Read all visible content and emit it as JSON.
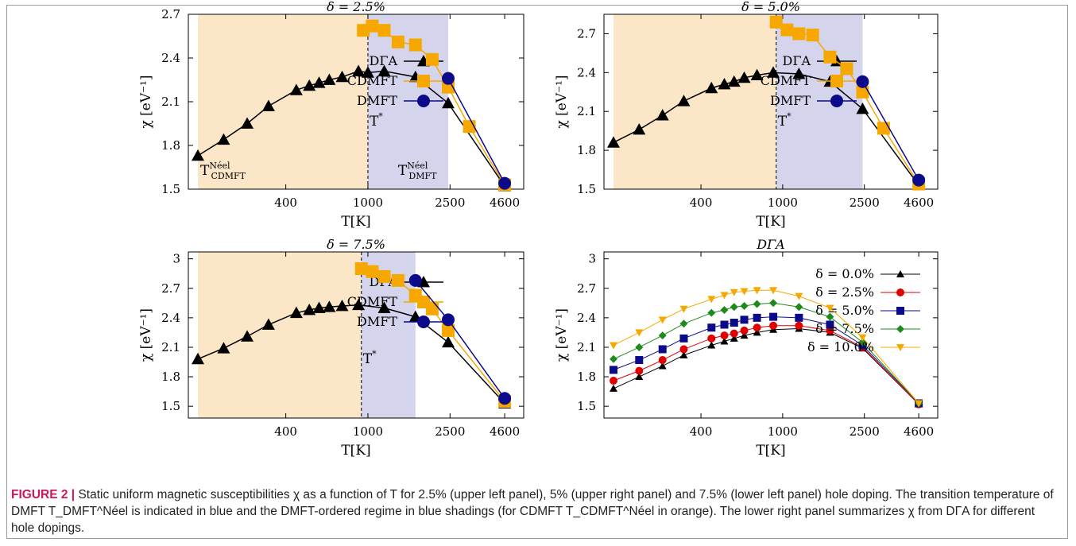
{
  "figure_label": "FIGURE 2 |",
  "caption_text": "Static uniform magnetic susceptibilities χ as a function of T for 2.5% (upper left panel), 5% (upper right panel) and 7.5% (lower left panel) hole doping. The transition temperature of DMFT T_DMFT^Néel is indicated in blue and the DMFT-ordered regime in blue shadings (for CDMFT T_CDMFT^Néel in orange). The lower right panel summarizes χ from DΓA for different hole dopings.",
  "colors": {
    "dga": "#000000",
    "cdmft": "#f6a800",
    "dmft": "#0a0a8a",
    "orange_shade": "#fbe7c8",
    "blue_shade": "#d4d4ec"
  },
  "chart_data": [
    {
      "type": "line",
      "title": "δ = 2.5%",
      "xlabel": "T[K]",
      "ylabel": "χ [eV⁻¹]",
      "x_ticks": [
        400,
        1000,
        2500,
        4600
      ],
      "y_ticks": [
        "1.5",
        "1.8",
        "2.1",
        "2.4",
        "2.7"
      ],
      "ylim": [
        1.5,
        2.7
      ],
      "annotations": [
        "T*",
        "T_CDMFT^Néel",
        "T_DMFT^Néel"
      ],
      "shaded_regions": [
        {
          "from": 150,
          "to": 1000,
          "color": "orange"
        },
        {
          "from": 1000,
          "to": 2450,
          "color": "blue"
        }
      ],
      "dashed_line_x": 1000,
      "legend_position": "right",
      "series": [
        {
          "name": "DΓA",
          "marker": "triangle",
          "x": [
            150,
            200,
            260,
            330,
            450,
            520,
            580,
            650,
            750,
            900,
            1000,
            1200,
            1700,
            2450,
            4600
          ],
          "y": [
            1.73,
            1.84,
            1.95,
            2.07,
            2.18,
            2.21,
            2.23,
            2.25,
            2.27,
            2.31,
            2.3,
            2.31,
            2.27,
            2.09,
            1.52
          ]
        },
        {
          "name": "CDMFT",
          "marker": "square",
          "x": [
            950,
            1050,
            1200,
            1400,
            1700,
            2050,
            2450,
            3100,
            4600
          ],
          "y": [
            2.59,
            2.62,
            2.59,
            2.51,
            2.49,
            2.39,
            2.2,
            1.93,
            1.53
          ]
        },
        {
          "name": "DMFT",
          "marker": "circle",
          "x": [
            2450,
            4600
          ],
          "y": [
            2.26,
            1.54
          ]
        }
      ]
    },
    {
      "type": "line",
      "title": "δ = 5.0%",
      "xlabel": "T[K]",
      "ylabel": "χ [eV⁻¹]",
      "x_ticks": [
        400,
        1000,
        2500,
        4600
      ],
      "y_ticks": [
        "1.5",
        "1.8",
        "2.1",
        "2.4",
        "2.7"
      ],
      "ylim": [
        1.5,
        2.85
      ],
      "annotations": [
        "T*"
      ],
      "shaded_regions": [
        {
          "from": 150,
          "to": 930,
          "color": "orange"
        },
        {
          "from": 930,
          "to": 2450,
          "color": "blue"
        }
      ],
      "dashed_line_x": 930,
      "legend_position": "right",
      "series": [
        {
          "name": "DΓA",
          "marker": "triangle",
          "x": [
            150,
            200,
            260,
            330,
            450,
            520,
            580,
            650,
            750,
            900,
            1200,
            1700,
            2450,
            4600
          ],
          "y": [
            1.86,
            1.96,
            2.07,
            2.18,
            2.28,
            2.31,
            2.33,
            2.36,
            2.38,
            2.4,
            2.39,
            2.33,
            2.12,
            1.53
          ]
        },
        {
          "name": "CDMFT",
          "marker": "square",
          "x": [
            930,
            1050,
            1200,
            1400,
            1700,
            2050,
            2450,
            3100,
            4600
          ],
          "y": [
            2.79,
            2.73,
            2.7,
            2.69,
            2.52,
            2.43,
            2.25,
            1.97,
            1.54
          ]
        },
        {
          "name": "DMFT",
          "marker": "circle",
          "x": [
            2450,
            4600
          ],
          "y": [
            2.33,
            1.57
          ]
        }
      ]
    },
    {
      "type": "line",
      "title": "δ = 7.5%",
      "xlabel": "T[K]",
      "ylabel": "χ [eV⁻¹]",
      "x_ticks": [
        400,
        1000,
        2500,
        4600
      ],
      "y_ticks": [
        "1.5",
        "1.8",
        "2.1",
        "2.4",
        "2.7",
        "3"
      ],
      "ylim": [
        1.38,
        3.07
      ],
      "annotations": [
        "T*"
      ],
      "shaded_regions": [
        {
          "from": 150,
          "to": 930,
          "color": "orange"
        },
        {
          "from": 930,
          "to": 1700,
          "color": "blue"
        }
      ],
      "dashed_line_x": 930,
      "legend_position": "right",
      "series": [
        {
          "name": "DΓA",
          "marker": "triangle",
          "x": [
            150,
            200,
            260,
            330,
            450,
            520,
            580,
            650,
            750,
            900,
            1200,
            1700,
            2450,
            4600
          ],
          "y": [
            1.98,
            2.09,
            2.21,
            2.33,
            2.45,
            2.48,
            2.5,
            2.51,
            2.52,
            2.53,
            2.5,
            2.41,
            2.15,
            1.53
          ]
        },
        {
          "name": "CDMFT",
          "marker": "square",
          "x": [
            930,
            1050,
            1200,
            1400,
            1700,
            2050,
            2450,
            4600
          ],
          "y": [
            2.9,
            2.87,
            2.82,
            2.78,
            2.63,
            2.49,
            2.27,
            1.55
          ]
        },
        {
          "name": "DMFT",
          "marker": "circle",
          "x": [
            1700,
            2450,
            4600
          ],
          "y": [
            2.78,
            2.38,
            1.58
          ]
        }
      ]
    },
    {
      "type": "line",
      "title": "DΓA",
      "xlabel": "T[K]",
      "ylabel": "χ [eV⁻¹]",
      "x_ticks": [
        400,
        1000,
        2500,
        4600
      ],
      "y_ticks": [
        "1.5",
        "1.8",
        "2.1",
        "2.4",
        "2.7",
        "3"
      ],
      "ylim": [
        1.38,
        3.07
      ],
      "legend_position": "top-right",
      "series": [
        {
          "name": "δ = 0.0%",
          "marker": "triangle",
          "color": "#000000",
          "x": [
            150,
            200,
            260,
            330,
            450,
            520,
            580,
            650,
            750,
            900,
            1200,
            1700,
            2450,
            4600
          ],
          "y": [
            1.68,
            1.8,
            1.91,
            2.02,
            2.12,
            2.16,
            2.19,
            2.22,
            2.25,
            2.28,
            2.29,
            2.25,
            2.09,
            1.52
          ]
        },
        {
          "name": "δ = 2.5%",
          "marker": "circle",
          "color": "#e00000",
          "x": [
            150,
            200,
            260,
            330,
            450,
            520,
            580,
            650,
            750,
            900,
            1200,
            1700,
            2450,
            4600
          ],
          "y": [
            1.76,
            1.86,
            1.97,
            2.08,
            2.19,
            2.22,
            2.24,
            2.27,
            2.3,
            2.32,
            2.32,
            2.27,
            2.1,
            1.52
          ]
        },
        {
          "name": "δ = 5.0%",
          "marker": "square",
          "color": "#0a0a8a",
          "x": [
            150,
            200,
            260,
            330,
            450,
            520,
            580,
            650,
            750,
            900,
            1200,
            1700,
            2450,
            4600
          ],
          "y": [
            1.87,
            1.97,
            2.08,
            2.19,
            2.3,
            2.33,
            2.35,
            2.38,
            2.4,
            2.41,
            2.4,
            2.33,
            2.12,
            1.53
          ]
        },
        {
          "name": "δ = 7.5%",
          "marker": "diamond",
          "color": "#1e8a1e",
          "x": [
            150,
            200,
            260,
            330,
            450,
            520,
            580,
            650,
            750,
            900,
            1200,
            1700,
            2450,
            4600
          ],
          "y": [
            1.98,
            2.1,
            2.22,
            2.34,
            2.45,
            2.48,
            2.51,
            2.52,
            2.54,
            2.55,
            2.51,
            2.41,
            2.15,
            1.53
          ]
        },
        {
          "name": "δ = 10.0%",
          "marker": "triangle-down",
          "color": "#f6a800",
          "x": [
            150,
            200,
            260,
            330,
            450,
            520,
            580,
            650,
            750,
            900,
            1200,
            1700,
            2450,
            4600
          ],
          "y": [
            2.12,
            2.25,
            2.38,
            2.49,
            2.59,
            2.63,
            2.66,
            2.67,
            2.68,
            2.68,
            2.62,
            2.5,
            2.2,
            1.53
          ]
        }
      ]
    }
  ]
}
